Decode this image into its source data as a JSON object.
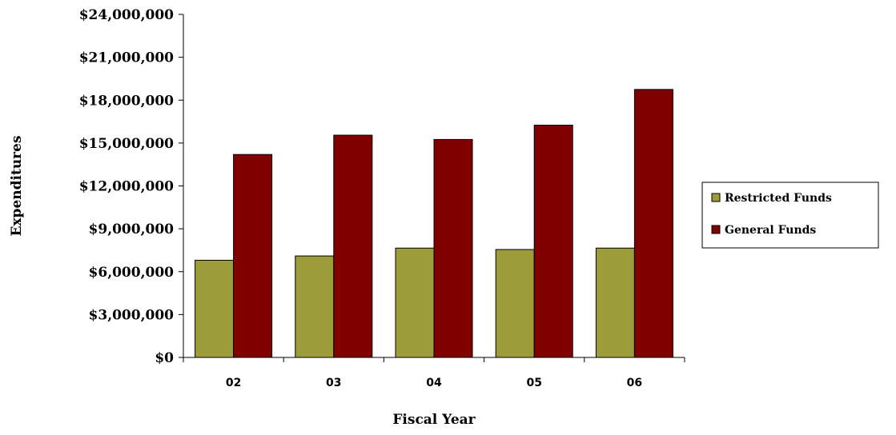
{
  "chart_data": {
    "type": "bar",
    "title": "",
    "xlabel": "Fiscal Year",
    "ylabel": "Expenditures",
    "categories": [
      "02",
      "03",
      "04",
      "05",
      "06"
    ],
    "series": [
      {
        "name": "Restricted Funds",
        "color": "#9c9c3a",
        "values": [
          6800000,
          7100000,
          7650000,
          7550000,
          7650000
        ]
      },
      {
        "name": "General Funds",
        "color": "#800000",
        "values": [
          14200000,
          15550000,
          15250000,
          16250000,
          18750000
        ]
      }
    ],
    "ylim": [
      0,
      24000000
    ],
    "yticks": [
      {
        "value": 0,
        "label": "$0"
      },
      {
        "value": 3000000,
        "label": "$3,000,000"
      },
      {
        "value": 6000000,
        "label": "$6,000,000"
      },
      {
        "value": 9000000,
        "label": "$9,000,000"
      },
      {
        "value": 12000000,
        "label": "$12,000,000"
      },
      {
        "value": 15000000,
        "label": "$15,000,000"
      },
      {
        "value": 18000000,
        "label": "$18,000,000"
      },
      {
        "value": 21000000,
        "label": "$21,000,000"
      },
      {
        "value": 24000000,
        "label": "$24,000,000"
      }
    ],
    "grid": false,
    "legend": "right"
  }
}
